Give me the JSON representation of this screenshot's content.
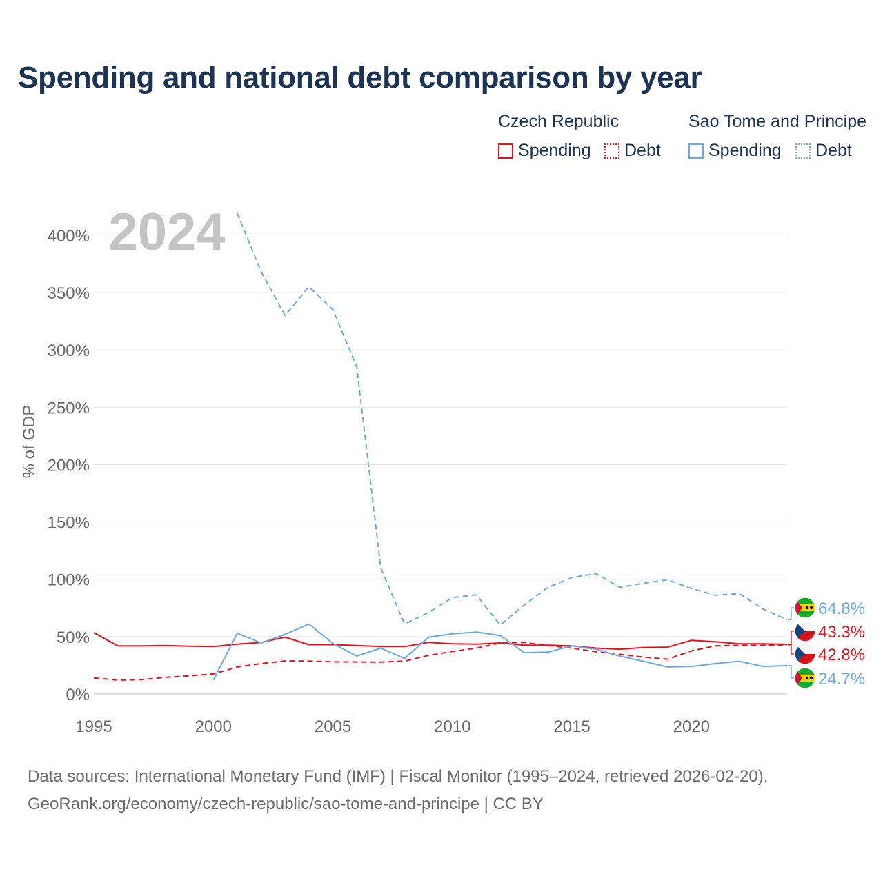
{
  "title": "Spending and national debt comparison by year",
  "legend": {
    "groups": [
      {
        "name": "Czech Republic",
        "spending": "Spending",
        "debt": "Debt"
      },
      {
        "name": "Sao Tome and Principe",
        "spending": "Spending",
        "debt": "Debt"
      }
    ]
  },
  "colors": {
    "czech": "#e8101a",
    "sao_tome": "#6aaae4",
    "title": "#1b3354",
    "grid": "#e6e6e6"
  },
  "source": {
    "line1": "Data sources: International Monetary Fund (IMF) | Fiscal Monitor (1995–2024, retrieved 2026-02-20).",
    "line2": "GeoRank.org/economy/czech-republic/sao-tome-and-principe | CC BY"
  },
  "chart_data": {
    "type": "line",
    "title": "Spending and national debt comparison by year",
    "year_label": "2024",
    "ylabel": "% of GDP",
    "xlabel": "",
    "xlim": [
      1995,
      2024
    ],
    "ylim": [
      0,
      420
    ],
    "xticks": [
      1995,
      2000,
      2005,
      2010,
      2015,
      2020
    ],
    "yticks": [
      0,
      50,
      100,
      150,
      200,
      250,
      300,
      350,
      400
    ],
    "ytick_labels": [
      "0%",
      "50%",
      "100%",
      "150%",
      "200%",
      "250%",
      "300%",
      "350%",
      "400%"
    ],
    "series": [
      {
        "name": "Czech Republic Spending",
        "country": "Czech Republic",
        "measure": "Spending",
        "style": "solid",
        "color": "#e8101a",
        "x": [
          1995,
          1996,
          1997,
          1998,
          1999,
          2000,
          2001,
          2002,
          2003,
          2004,
          2005,
          2006,
          2007,
          2008,
          2009,
          2010,
          2011,
          2012,
          2013,
          2014,
          2015,
          2016,
          2017,
          2018,
          2019,
          2020,
          2021,
          2022,
          2023,
          2024
        ],
        "values": [
          53.5,
          42,
          42,
          42.3,
          41.7,
          41.3,
          43.5,
          45,
          49.5,
          43,
          43,
          42.3,
          41.3,
          41.3,
          45,
          43.8,
          43.5,
          44.5,
          42.6,
          42.5,
          42,
          40,
          39,
          40.5,
          40.8,
          46.8,
          45.5,
          43.8,
          43.8,
          43.3
        ]
      },
      {
        "name": "Czech Republic Debt",
        "country": "Czech Republic",
        "measure": "Debt",
        "style": "dashed",
        "color": "#e8101a",
        "x": [
          1995,
          1996,
          1997,
          1998,
          1999,
          2000,
          2001,
          2002,
          2003,
          2004,
          2005,
          2006,
          2007,
          2008,
          2009,
          2010,
          2011,
          2012,
          2013,
          2014,
          2015,
          2016,
          2017,
          2018,
          2019,
          2020,
          2021,
          2022,
          2023,
          2024
        ],
        "values": [
          14,
          12,
          12.5,
          14.5,
          15.8,
          17.5,
          23.5,
          26.5,
          28.8,
          28.7,
          28,
          27.9,
          27.8,
          28.7,
          33.6,
          37.1,
          39.9,
          44.5,
          44.9,
          42.2,
          40,
          36.8,
          34.6,
          32.1,
          30.3,
          37.6,
          42,
          42.5,
          42.4,
          42.8
        ]
      },
      {
        "name": "Sao Tome and Principe Spending",
        "country": "Sao Tome and Principe",
        "measure": "Spending",
        "style": "solid",
        "color": "#6aaae4",
        "x": [
          2000,
          2001,
          2002,
          2003,
          2004,
          2005,
          2006,
          2007,
          2008,
          2009,
          2010,
          2011,
          2012,
          2013,
          2014,
          2015,
          2016,
          2017,
          2018,
          2019,
          2020,
          2021,
          2022,
          2023,
          2024
        ],
        "values": [
          12,
          53,
          44.5,
          52,
          61,
          44,
          33,
          40,
          31,
          49.5,
          52.5,
          54,
          51,
          36,
          36.5,
          42,
          39,
          33,
          28.5,
          23.5,
          24,
          26.5,
          28.5,
          24,
          24.7
        ]
      },
      {
        "name": "Sao Tome and Principe Debt",
        "country": "Sao Tome and Principe",
        "measure": "Debt",
        "style": "dashed",
        "color": "#6aaae4",
        "x": [
          2001,
          2002,
          2003,
          2004,
          2005,
          2006,
          2007,
          2008,
          2009,
          2010,
          2011,
          2012,
          2013,
          2014,
          2015,
          2016,
          2017,
          2018,
          2019,
          2020,
          2021,
          2022,
          2023,
          2024
        ],
        "values": [
          419,
          368,
          330,
          355,
          335,
          285,
          110,
          61,
          71,
          84,
          86.5,
          60,
          77.5,
          93,
          101.5,
          105,
          93,
          96.5,
          99.5,
          92,
          86,
          87.5,
          74,
          64.8
        ]
      }
    ],
    "end_labels": [
      {
        "country": "Sao Tome and Principe",
        "measure": "Debt",
        "text": "64.8%",
        "value": 64.8,
        "color": "#6aaae4"
      },
      {
        "country": "Czech Republic",
        "measure": "Spending",
        "text": "43.3%",
        "value": 43.3,
        "color": "#e8101a"
      },
      {
        "country": "Czech Republic",
        "measure": "Debt",
        "text": "42.8%",
        "value": 42.8,
        "color": "#e8101a"
      },
      {
        "country": "Sao Tome and Principe",
        "measure": "Spending",
        "text": "24.7%",
        "value": 24.7,
        "color": "#6aaae4"
      }
    ]
  }
}
